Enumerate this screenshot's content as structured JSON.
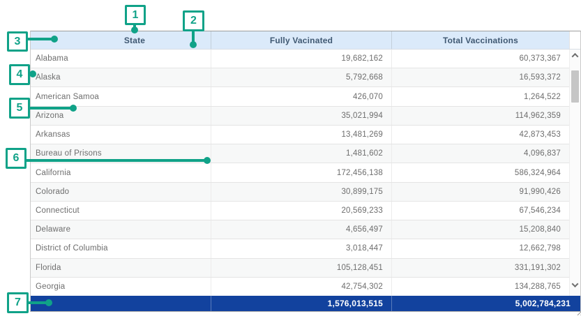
{
  "callouts": {
    "labels": [
      "1",
      "2",
      "3",
      "4",
      "5",
      "6",
      "7"
    ]
  },
  "table": {
    "columns": [
      "State",
      "Fully Vacinated",
      "Total Vaccinations"
    ],
    "rows": [
      [
        "Alabama",
        "19,682,162",
        "60,373,367"
      ],
      [
        "Alaska",
        "5,792,668",
        "16,593,372"
      ],
      [
        "American Samoa",
        "426,070",
        "1,264,522"
      ],
      [
        "Arizona",
        "35,021,994",
        "114,962,359"
      ],
      [
        "Arkansas",
        "13,481,269",
        "42,873,453"
      ],
      [
        "Bureau of Prisons",
        "1,481,602",
        "4,096,837"
      ],
      [
        "California",
        "172,456,138",
        "586,324,964"
      ],
      [
        "Colorado",
        "30,899,175",
        "91,990,426"
      ],
      [
        "Connecticut",
        "20,569,233",
        "67,546,234"
      ],
      [
        "Delaware",
        "4,656,497",
        "15,208,840"
      ],
      [
        "District of Columbia",
        "3,018,447",
        "12,662,798"
      ],
      [
        "Florida",
        "105,128,451",
        "331,191,302"
      ],
      [
        "Georgia",
        "42,754,302",
        "134,288,765"
      ]
    ],
    "totals": {
      "state": "",
      "fully_vaccinated": "1,576,013,515",
      "total_vaccinations": "5,002,784,231"
    }
  },
  "icons": {
    "scroll_up": "chevron-up-icon",
    "scroll_down": "chevron-down-icon",
    "resize_grip": "resize-grip-icon"
  },
  "colors": {
    "callout_teal": "#10a288",
    "header_bg": "#dbeafa",
    "header_text": "#3f5872",
    "totals_bg": "#12429e",
    "row_alt_bg": "#f7f8f8",
    "body_text": "#6d6d6d"
  }
}
